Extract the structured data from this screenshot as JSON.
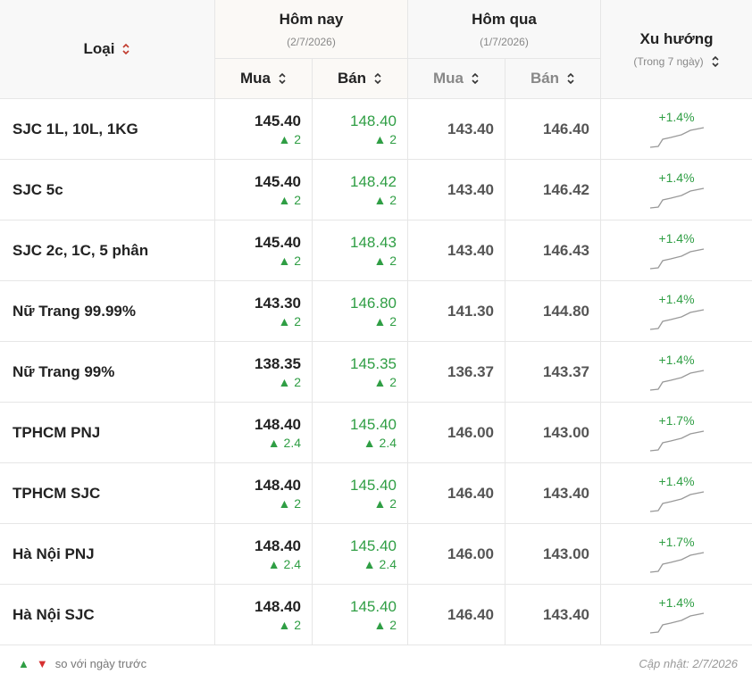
{
  "header": {
    "type_label": "Loại",
    "today": {
      "label": "Hôm nay",
      "date": "(2/7/2026)",
      "buy": "Mua",
      "sell": "Bán"
    },
    "yesterday": {
      "label": "Hôm qua",
      "date": "(1/7/2026)",
      "buy": "Mua",
      "sell": "Bán"
    },
    "trend": {
      "label": "Xu hướng",
      "note": "(Trong 7 ngày)"
    }
  },
  "rows": [
    {
      "name": "SJC 1L, 10L, 1KG",
      "today_buy": "145.40",
      "today_buy_change": "▲ 2",
      "today_sell": "148.40",
      "today_sell_change": "▲ 2",
      "yesterday_buy": "143.40",
      "yesterday_sell": "146.40",
      "trend": "+1.4%"
    },
    {
      "name": "SJC 5c",
      "today_buy": "145.40",
      "today_buy_change": "▲ 2",
      "today_sell": "148.42",
      "today_sell_change": "▲ 2",
      "yesterday_buy": "143.40",
      "yesterday_sell": "146.42",
      "trend": "+1.4%"
    },
    {
      "name": "SJC 2c, 1C, 5 phân",
      "today_buy": "145.40",
      "today_buy_change": "▲ 2",
      "today_sell": "148.43",
      "today_sell_change": "▲ 2",
      "yesterday_buy": "143.40",
      "yesterday_sell": "146.43",
      "trend": "+1.4%"
    },
    {
      "name": "Nữ Trang 99.99%",
      "today_buy": "143.30",
      "today_buy_change": "▲ 2",
      "today_sell": "146.80",
      "today_sell_change": "▲ 2",
      "yesterday_buy": "141.30",
      "yesterday_sell": "144.80",
      "trend": "+1.4%"
    },
    {
      "name": "Nữ Trang 99%",
      "today_buy": "138.35",
      "today_buy_change": "▲ 2",
      "today_sell": "145.35",
      "today_sell_change": "▲ 2",
      "yesterday_buy": "136.37",
      "yesterday_sell": "143.37",
      "trend": "+1.4%"
    },
    {
      "name": "TPHCM PNJ",
      "today_buy": "148.40",
      "today_buy_change": "▲ 2.4",
      "today_sell": "145.40",
      "today_sell_change": "▲ 2.4",
      "yesterday_buy": "146.00",
      "yesterday_sell": "143.00",
      "trend": "+1.7%"
    },
    {
      "name": "TPHCM SJC",
      "today_buy": "148.40",
      "today_buy_change": "▲ 2",
      "today_sell": "145.40",
      "today_sell_change": "▲ 2",
      "yesterday_buy": "146.40",
      "yesterday_sell": "143.40",
      "trend": "+1.4%"
    },
    {
      "name": "Hà Nội PNJ",
      "today_buy": "148.40",
      "today_buy_change": "▲ 2.4",
      "today_sell": "145.40",
      "today_sell_change": "▲ 2.4",
      "yesterday_buy": "146.00",
      "yesterday_sell": "143.00",
      "trend": "+1.7%"
    },
    {
      "name": "Hà Nội SJC",
      "today_buy": "148.40",
      "today_buy_change": "▲ 2",
      "today_sell": "145.40",
      "today_sell_change": "▲ 2",
      "yesterday_buy": "146.40",
      "yesterday_sell": "143.40",
      "trend": "+1.4%"
    }
  ],
  "footer": {
    "legend_up": "▲",
    "legend_down": "▼",
    "legend_text": "so với ngày trước",
    "updated": "Cập nhật: 2/7/2026"
  }
}
